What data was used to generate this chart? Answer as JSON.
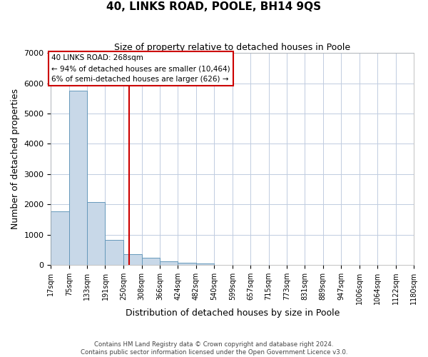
{
  "title": "40, LINKS ROAD, POOLE, BH14 9QS",
  "subtitle": "Size of property relative to detached houses in Poole",
  "xlabel": "Distribution of detached houses by size in Poole",
  "ylabel": "Number of detached properties",
  "footer_line1": "Contains HM Land Registry data © Crown copyright and database right 2024.",
  "footer_line2": "Contains public sector information licensed under the Open Government Licence v3.0.",
  "bin_labels": [
    "17sqm",
    "75sqm",
    "133sqm",
    "191sqm",
    "250sqm",
    "308sqm",
    "366sqm",
    "424sqm",
    "482sqm",
    "540sqm",
    "599sqm",
    "657sqm",
    "715sqm",
    "773sqm",
    "831sqm",
    "889sqm",
    "947sqm",
    "1006sqm",
    "1064sqm",
    "1122sqm",
    "1180sqm"
  ],
  "bar_values": [
    1780,
    5750,
    2080,
    820,
    370,
    230,
    115,
    70,
    50,
    0,
    0,
    0,
    0,
    0,
    0,
    0,
    0,
    0,
    0,
    0
  ],
  "bin_edges": [
    17,
    75,
    133,
    191,
    250,
    308,
    366,
    424,
    482,
    540,
    599,
    657,
    715,
    773,
    831,
    889,
    947,
    1006,
    1064,
    1122,
    1180
  ],
  "bar_color": "#c8d8e8",
  "bar_edge_color": "#6699bb",
  "vline_x": 268,
  "vline_color": "#cc0000",
  "annotation_title": "40 LINKS ROAD: 268sqm",
  "annotation_line1": "← 94% of detached houses are smaller (10,464)",
  "annotation_line2": "6% of semi-detached houses are larger (626) →",
  "annotation_box_color": "#cc0000",
  "annotation_text_color": "#000000",
  "ylim": [
    0,
    7000
  ],
  "yticks": [
    0,
    1000,
    2000,
    3000,
    4000,
    5000,
    6000,
    7000
  ],
  "grid_color": "#c0cce0",
  "background_color": "#ffffff",
  "figsize": [
    6.0,
    5.0
  ],
  "dpi": 100
}
